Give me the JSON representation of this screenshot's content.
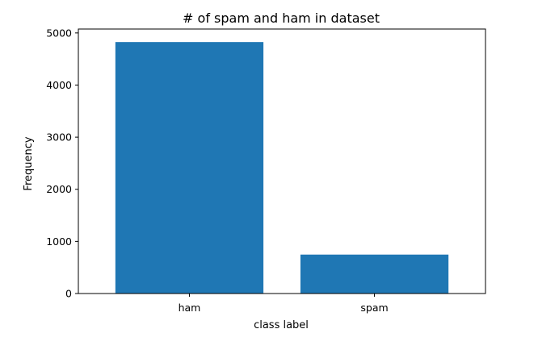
{
  "chart_data": {
    "type": "bar",
    "title": "# of spam and ham in dataset",
    "xlabel": "class label",
    "ylabel": "Frequency",
    "categories": [
      "ham",
      "spam"
    ],
    "values": [
      4825,
      747
    ],
    "ylim": [
      0,
      5075
    ],
    "yticks": [
      0,
      1000,
      2000,
      3000,
      4000,
      5000
    ],
    "bar_color": "#1f77b4",
    "grid": false,
    "legend": "none"
  }
}
